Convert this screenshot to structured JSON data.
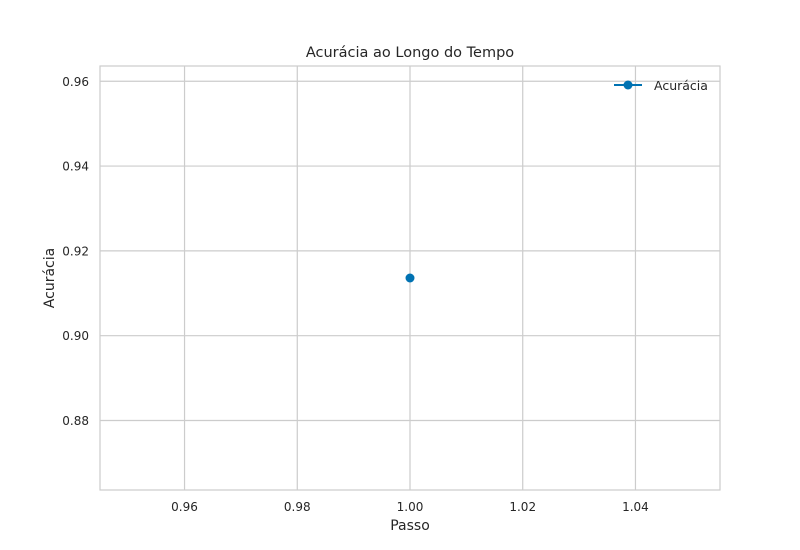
{
  "chart_data": {
    "type": "line",
    "title": "Acurácia ao Longo do Tempo",
    "xlabel": "Passo",
    "ylabel": "Acurácia",
    "xlim": [
      0.945,
      1.055
    ],
    "ylim": [
      0.8636,
      0.9636
    ],
    "xticks": [
      0.96,
      0.98,
      1.0,
      1.02,
      1.04
    ],
    "xtick_labels": [
      "0.96",
      "0.98",
      "1.00",
      "1.02",
      "1.04"
    ],
    "yticks": [
      0.88,
      0.9,
      0.92,
      0.94,
      0.96
    ],
    "ytick_labels": [
      "0.88",
      "0.90",
      "0.92",
      "0.94",
      "0.96"
    ],
    "grid": true,
    "legend_position": "top-right",
    "series": [
      {
        "name": "Acurácia",
        "color": "#0072b2",
        "marker": "circle",
        "x": [
          1.0
        ],
        "y": [
          0.9136
        ]
      }
    ]
  }
}
